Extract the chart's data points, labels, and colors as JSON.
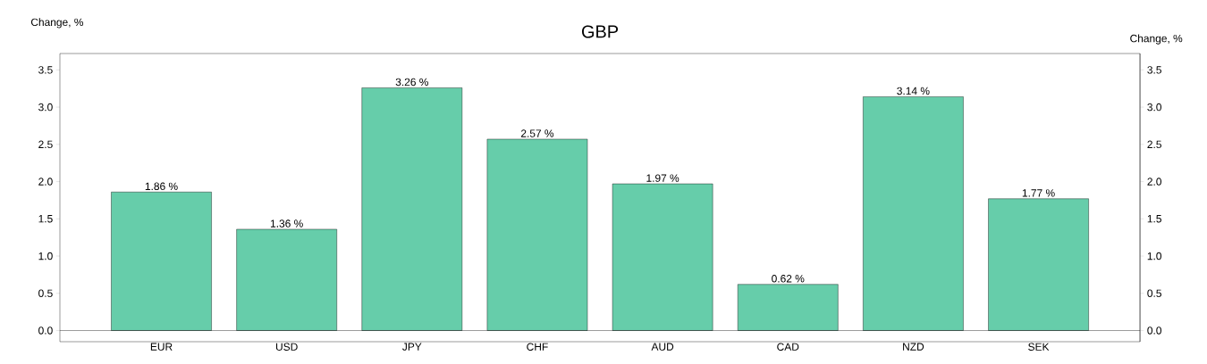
{
  "chart_data": {
    "type": "bar",
    "title": "GBP",
    "ylabel": "Change, %",
    "y2label": "Change, %",
    "categories": [
      "EUR",
      "USD",
      "JPY",
      "CHF",
      "AUD",
      "CAD",
      "NZD",
      "SEK"
    ],
    "values": [
      1.86,
      1.36,
      3.26,
      2.57,
      1.97,
      0.62,
      3.14,
      1.77
    ],
    "value_labels": [
      "1.86 %",
      "1.36 %",
      "3.26 %",
      "2.57 %",
      "1.97 %",
      "0.62 %",
      "3.14 %",
      "1.77 %"
    ],
    "color": "#66cdaa",
    "ylim": [
      -0.15,
      3.72
    ],
    "yticks": [
      {
        "value": 0,
        "label": "0.0"
      },
      {
        "value": 0.5,
        "label": "0.5"
      },
      {
        "value": 1,
        "label": "1.0"
      },
      {
        "value": 1.5,
        "label": "1.5"
      },
      {
        "value": 2,
        "label": "2.0"
      },
      {
        "value": 2.5,
        "label": "2.5"
      },
      {
        "value": 3,
        "label": "3.0"
      },
      {
        "value": 3.5,
        "label": "3.5"
      }
    ],
    "y2lim": [
      -0.15,
      3.72
    ],
    "y2ticks": [
      {
        "value": 0,
        "label": "0.0"
      },
      {
        "value": 0.5,
        "label": "0.5"
      },
      {
        "value": 1,
        "label": "1.0"
      },
      {
        "value": 1.5,
        "label": "1.5"
      },
      {
        "value": 2,
        "label": "2.0"
      },
      {
        "value": 2.5,
        "label": "2.5"
      },
      {
        "value": 3,
        "label": "3.0"
      },
      {
        "value": 3.5,
        "label": "3.5"
      }
    ],
    "ref_lines": [
      {
        "axis": "y",
        "value": 0
      }
    ],
    "grid": false
  }
}
